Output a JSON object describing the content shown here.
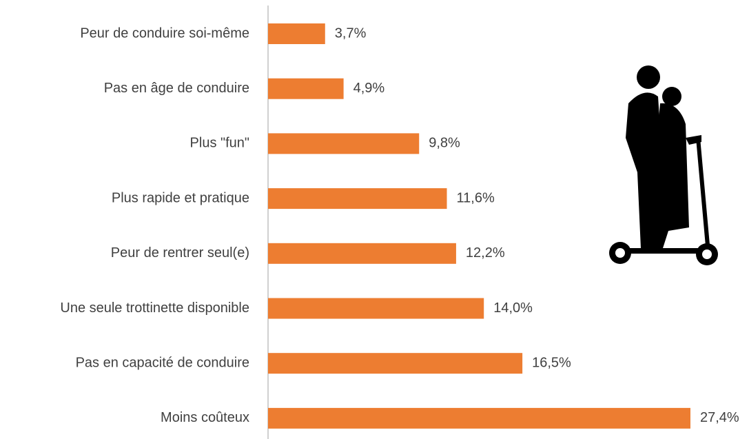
{
  "chart_data": {
    "type": "bar",
    "orientation": "horizontal",
    "categories": [
      "Peur de conduire soi-même",
      "Pas en âge de conduire",
      "Plus \"fun\"",
      "Plus rapide et pratique",
      "Peur de rentrer seul(e)",
      "Une seule trottinette disponible",
      "Pas en capacité de conduire",
      "Moins coûteux"
    ],
    "values": [
      3.7,
      4.9,
      9.8,
      11.6,
      12.2,
      14.0,
      16.5,
      27.4
    ],
    "value_labels": [
      "3,7%",
      "4,9%",
      "9,8%",
      "11,6%",
      "12,2%",
      "14,0%",
      "16,5%",
      "27,4%"
    ],
    "color": "#ed7d31",
    "xlim": [
      0,
      31.2
    ]
  }
}
